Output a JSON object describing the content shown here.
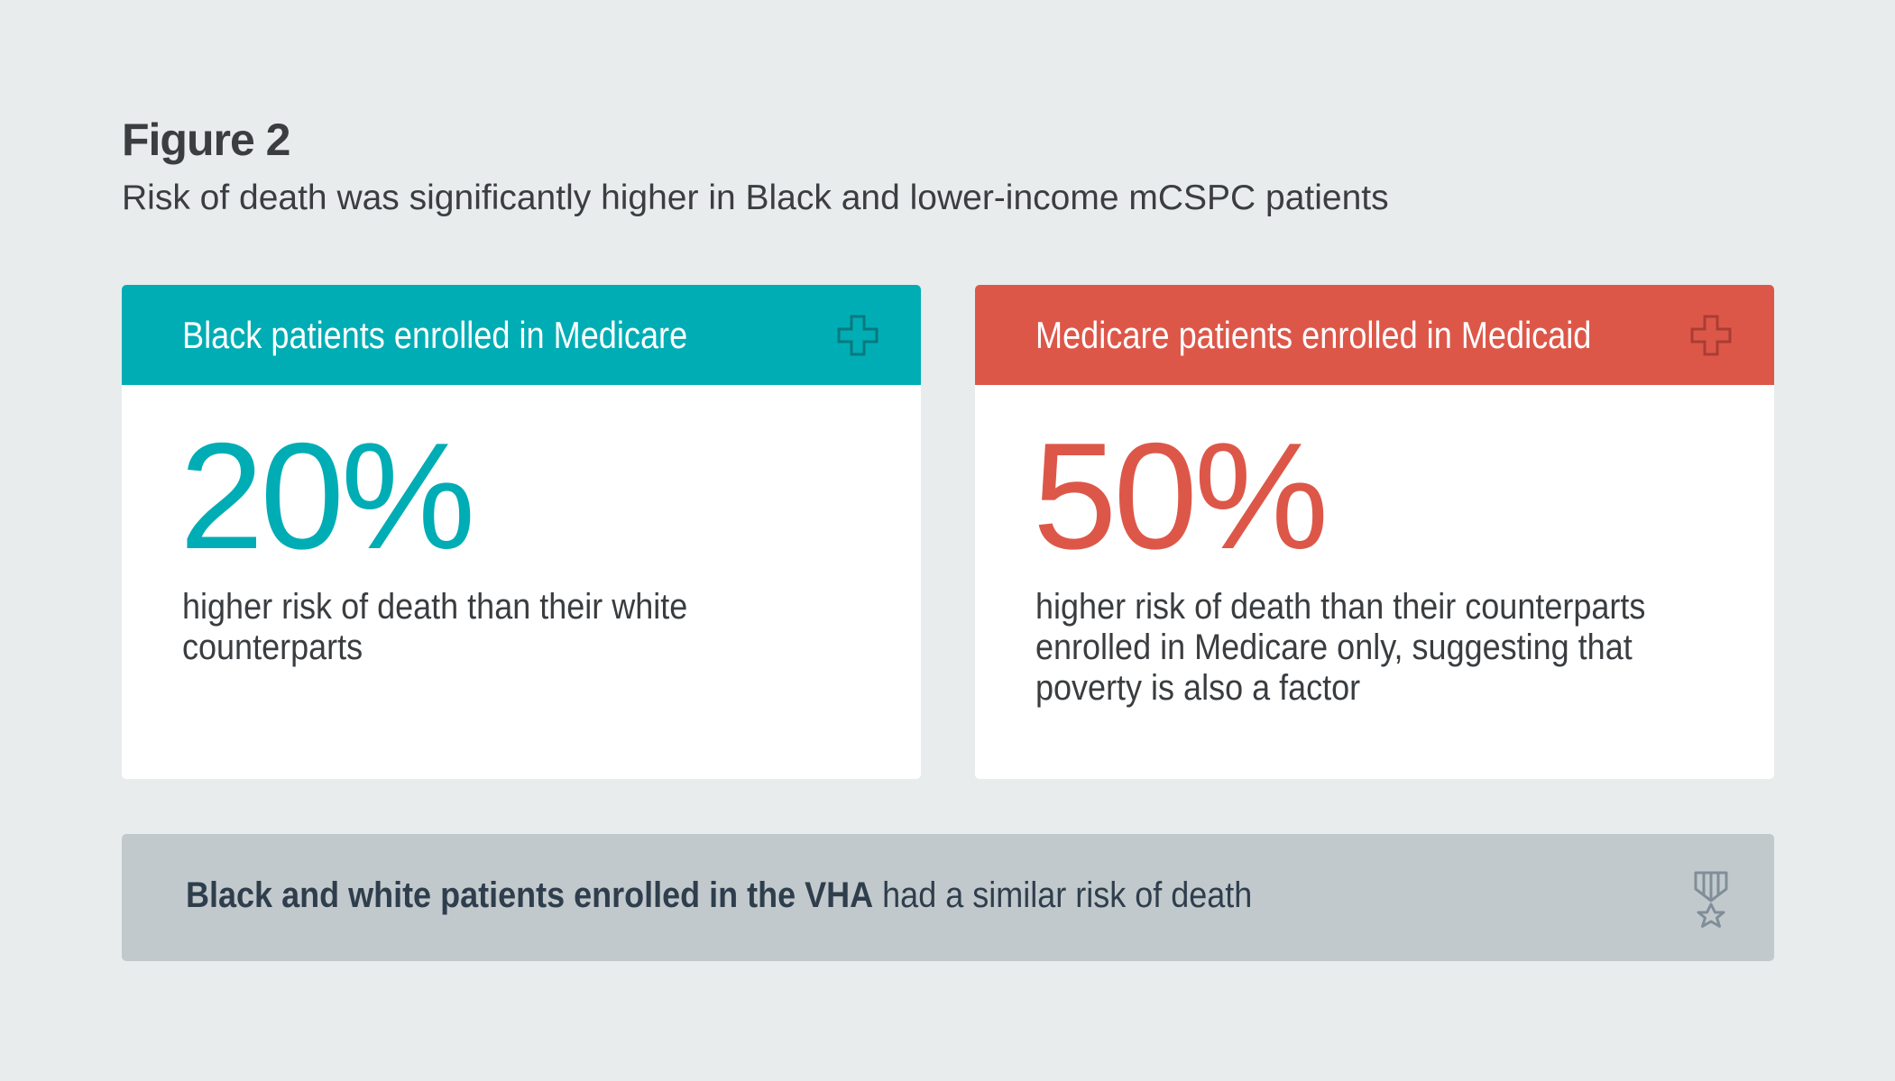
{
  "figure": {
    "title": "Figure 2",
    "subtitle": "Risk of death was significantly higher in Black and lower-income mCSPC patients"
  },
  "cards": [
    {
      "header": "Black patients enrolled in Medicare",
      "icon": "medical-cross-icon",
      "stat": "20%",
      "description": "higher risk of death than their white counterparts",
      "color": "#00adb5"
    },
    {
      "header": "Medicare patients enrolled in Medicaid",
      "icon": "medical-cross-icon",
      "stat": "50%",
      "description": "higher risk of death than their counterparts enrolled in Medicare only, suggesting that poverty is also a factor",
      "color": "#dd5749"
    }
  ],
  "footer": {
    "bold": "Black and white patients enrolled in the VHA",
    "rest": " had a similar risk of death",
    "icon": "medal-icon"
  }
}
